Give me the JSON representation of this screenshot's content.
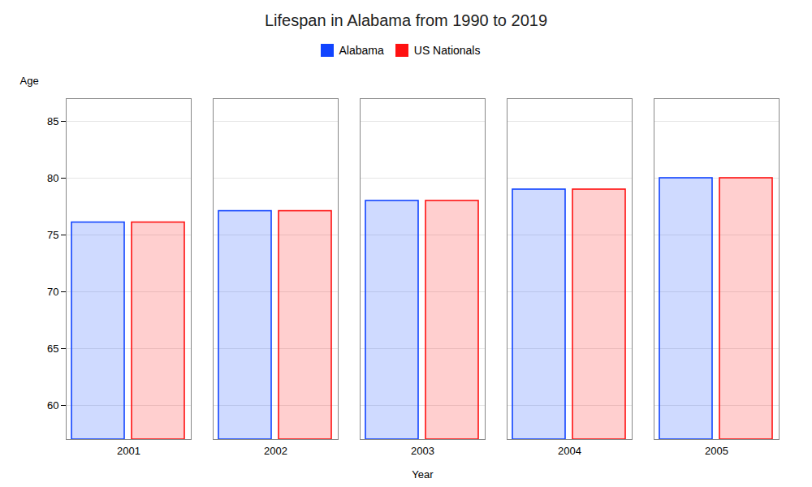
{
  "chart_data": {
    "type": "bar",
    "title": "Lifespan in Alabama from 1990 to 2019",
    "xlabel": "Year",
    "ylabel": "Age",
    "categories": [
      "2001",
      "2002",
      "2003",
      "2004",
      "2005"
    ],
    "series": [
      {
        "name": "Alabama",
        "color": "#1144FF",
        "values": [
          76.1,
          77.1,
          78.0,
          79.0,
          80.0
        ]
      },
      {
        "name": "US Nationals",
        "color": "#FF1111",
        "values": [
          76.1,
          77.1,
          78.0,
          79.0,
          80.0
        ]
      }
    ],
    "ylim": [
      57,
      87
    ],
    "yticks": [
      60,
      65,
      70,
      75,
      80,
      85
    ],
    "grid": true,
    "legend": "top"
  }
}
